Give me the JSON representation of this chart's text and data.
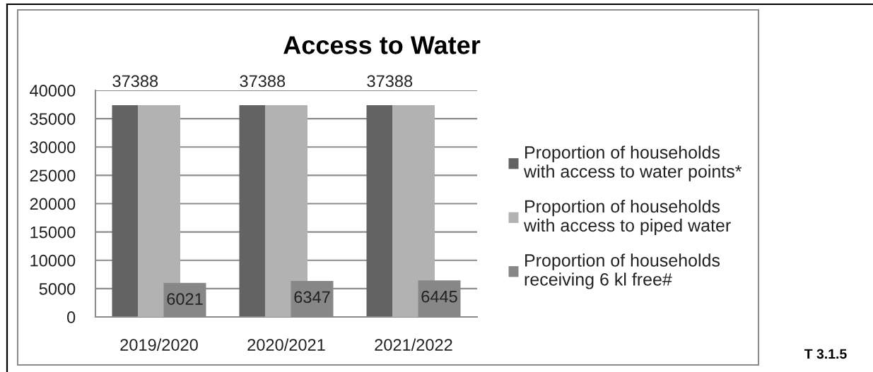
{
  "chart_data": {
    "type": "bar",
    "title": "Access to Water",
    "categories": [
      "2019/2020",
      "2020/2021",
      "2021/2022"
    ],
    "series": [
      {
        "name": "Proportion of households\nwith access to water points*",
        "color": "#636363",
        "values": [
          37388,
          37388,
          37388
        ],
        "value_labels": [
          "37388",
          "37388",
          "37388"
        ]
      },
      {
        "name": "Proportion of households\nwith access to piped water",
        "color": "#b2b2b2",
        "values": [
          37388,
          37388,
          37388
        ]
      },
      {
        "name": "Proportion of households\nreceiving 6 kl free#",
        "color": "#878787",
        "values": [
          6021,
          6347,
          6445
        ],
        "value_labels": [
          "6021",
          "6347",
          "6445"
        ]
      }
    ],
    "ylim": [
      0,
      40000
    ],
    "yticks": [
      0,
      5000,
      10000,
      15000,
      20000,
      25000,
      30000,
      35000,
      40000
    ],
    "grid": "y",
    "legend": "right",
    "annotations": [
      "T 3.1.5"
    ]
  }
}
